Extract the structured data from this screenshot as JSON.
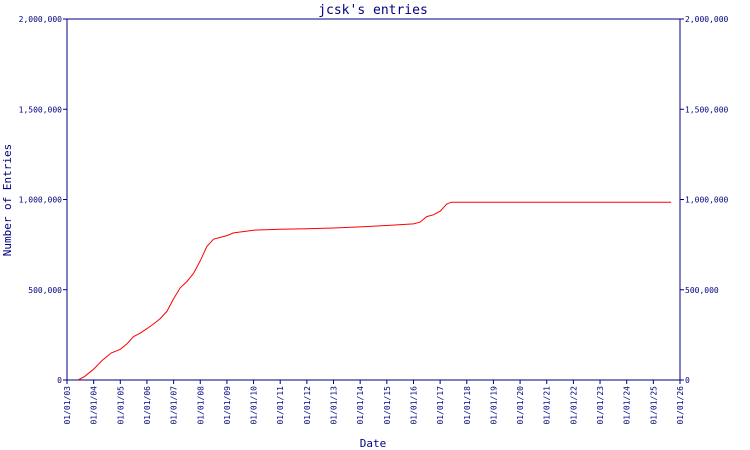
{
  "chart_data": {
    "type": "line",
    "title": "jcsk's entries",
    "xlabel": "Date",
    "ylabel": "Number of Entries",
    "x_tick_labels": [
      "01/01/03",
      "01/01/04",
      "01/01/05",
      "01/01/06",
      "01/01/07",
      "01/01/08",
      "01/01/09",
      "01/01/10",
      "01/01/11",
      "01/01/12",
      "01/01/13",
      "01/01/14",
      "01/01/15",
      "01/01/16",
      "01/01/17",
      "01/01/18",
      "01/01/19",
      "01/01/20",
      "01/01/21",
      "01/01/22",
      "01/01/23",
      "01/01/24",
      "01/01/25",
      "01/01/26"
    ],
    "xlim": [
      "2003-01-01",
      "2026-01-01"
    ],
    "y_tick_labels": [
      "0",
      "500,000",
      "1,000,000",
      "1,500,000",
      "2,000,000"
    ],
    "ylim": [
      0,
      2000000
    ],
    "grid": false,
    "colors": {
      "axis": "#000080",
      "series": "#ff0000"
    },
    "series": [
      {
        "x": [
          "2003-06-01",
          "2003-09-01",
          "2004-01-01",
          "2004-05-01",
          "2004-09-01",
          "2005-01-01",
          "2005-04-01",
          "2005-07-01",
          "2005-10-01",
          "2006-01-01",
          "2006-04-01",
          "2006-07-01",
          "2006-10-01",
          "2007-01-01",
          "2007-04-01",
          "2007-07-01",
          "2007-10-01",
          "2008-01-01",
          "2008-04-01",
          "2008-07-01",
          "2008-10-01",
          "2009-01-01",
          "2009-04-01",
          "2009-07-01",
          "2010-01-01",
          "2011-01-01",
          "2012-01-01",
          "2013-01-01",
          "2014-01-01",
          "2015-01-01",
          "2016-01-01",
          "2016-04-01",
          "2016-07-01",
          "2016-10-01",
          "2017-01-01",
          "2017-04-01",
          "2017-06-01",
          "2018-01-01",
          "2019-01-01",
          "2020-01-01",
          "2021-01-01",
          "2022-01-01",
          "2023-01-01",
          "2024-01-01",
          "2025-01-01",
          "2025-09-01"
        ],
        "y": [
          0,
          20000,
          60000,
          110000,
          150000,
          170000,
          200000,
          240000,
          260000,
          285000,
          310000,
          340000,
          380000,
          450000,
          510000,
          545000,
          590000,
          660000,
          740000,
          780000,
          790000,
          800000,
          815000,
          820000,
          830000,
          835000,
          838000,
          842000,
          848000,
          856000,
          865000,
          875000,
          905000,
          915000,
          935000,
          975000,
          985000,
          985000,
          985000,
          985000,
          985000,
          985000,
          985000,
          985000,
          985000,
          985000
        ]
      }
    ]
  }
}
